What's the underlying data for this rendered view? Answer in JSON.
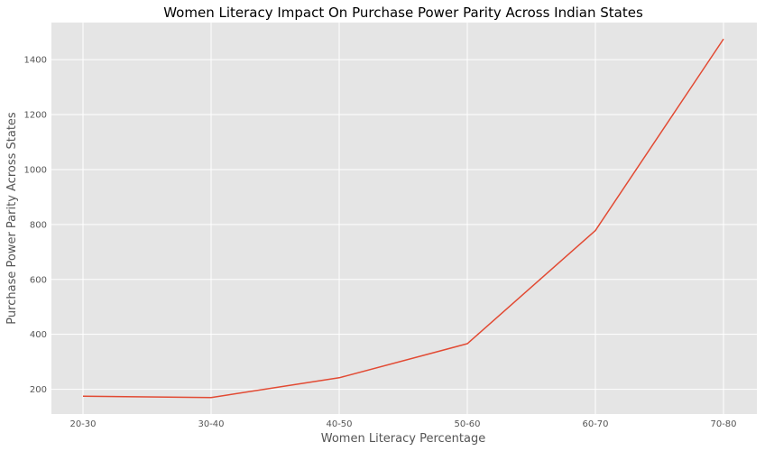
{
  "chart_data": {
    "type": "line",
    "title": "Women Literacy Impact On Purchase Power Parity Across Indian States",
    "xlabel": "Women Literacy Percentage",
    "ylabel": "Purchase Power Parity Across States",
    "categories": [
      "20-30",
      "30-40",
      "40-50",
      "50-60",
      "60-70",
      "70-80"
    ],
    "series": [
      {
        "values": [
          175,
          170,
          242,
          366,
          778,
          1475
        ],
        "color": "#e24a33"
      }
    ],
    "ylim": [
      110,
      1535
    ],
    "yticks": [
      200,
      400,
      600,
      800,
      1000,
      1200,
      1400
    ],
    "grid": true,
    "background_color": "#e5e5e5",
    "grid_color": "#ffffff"
  }
}
